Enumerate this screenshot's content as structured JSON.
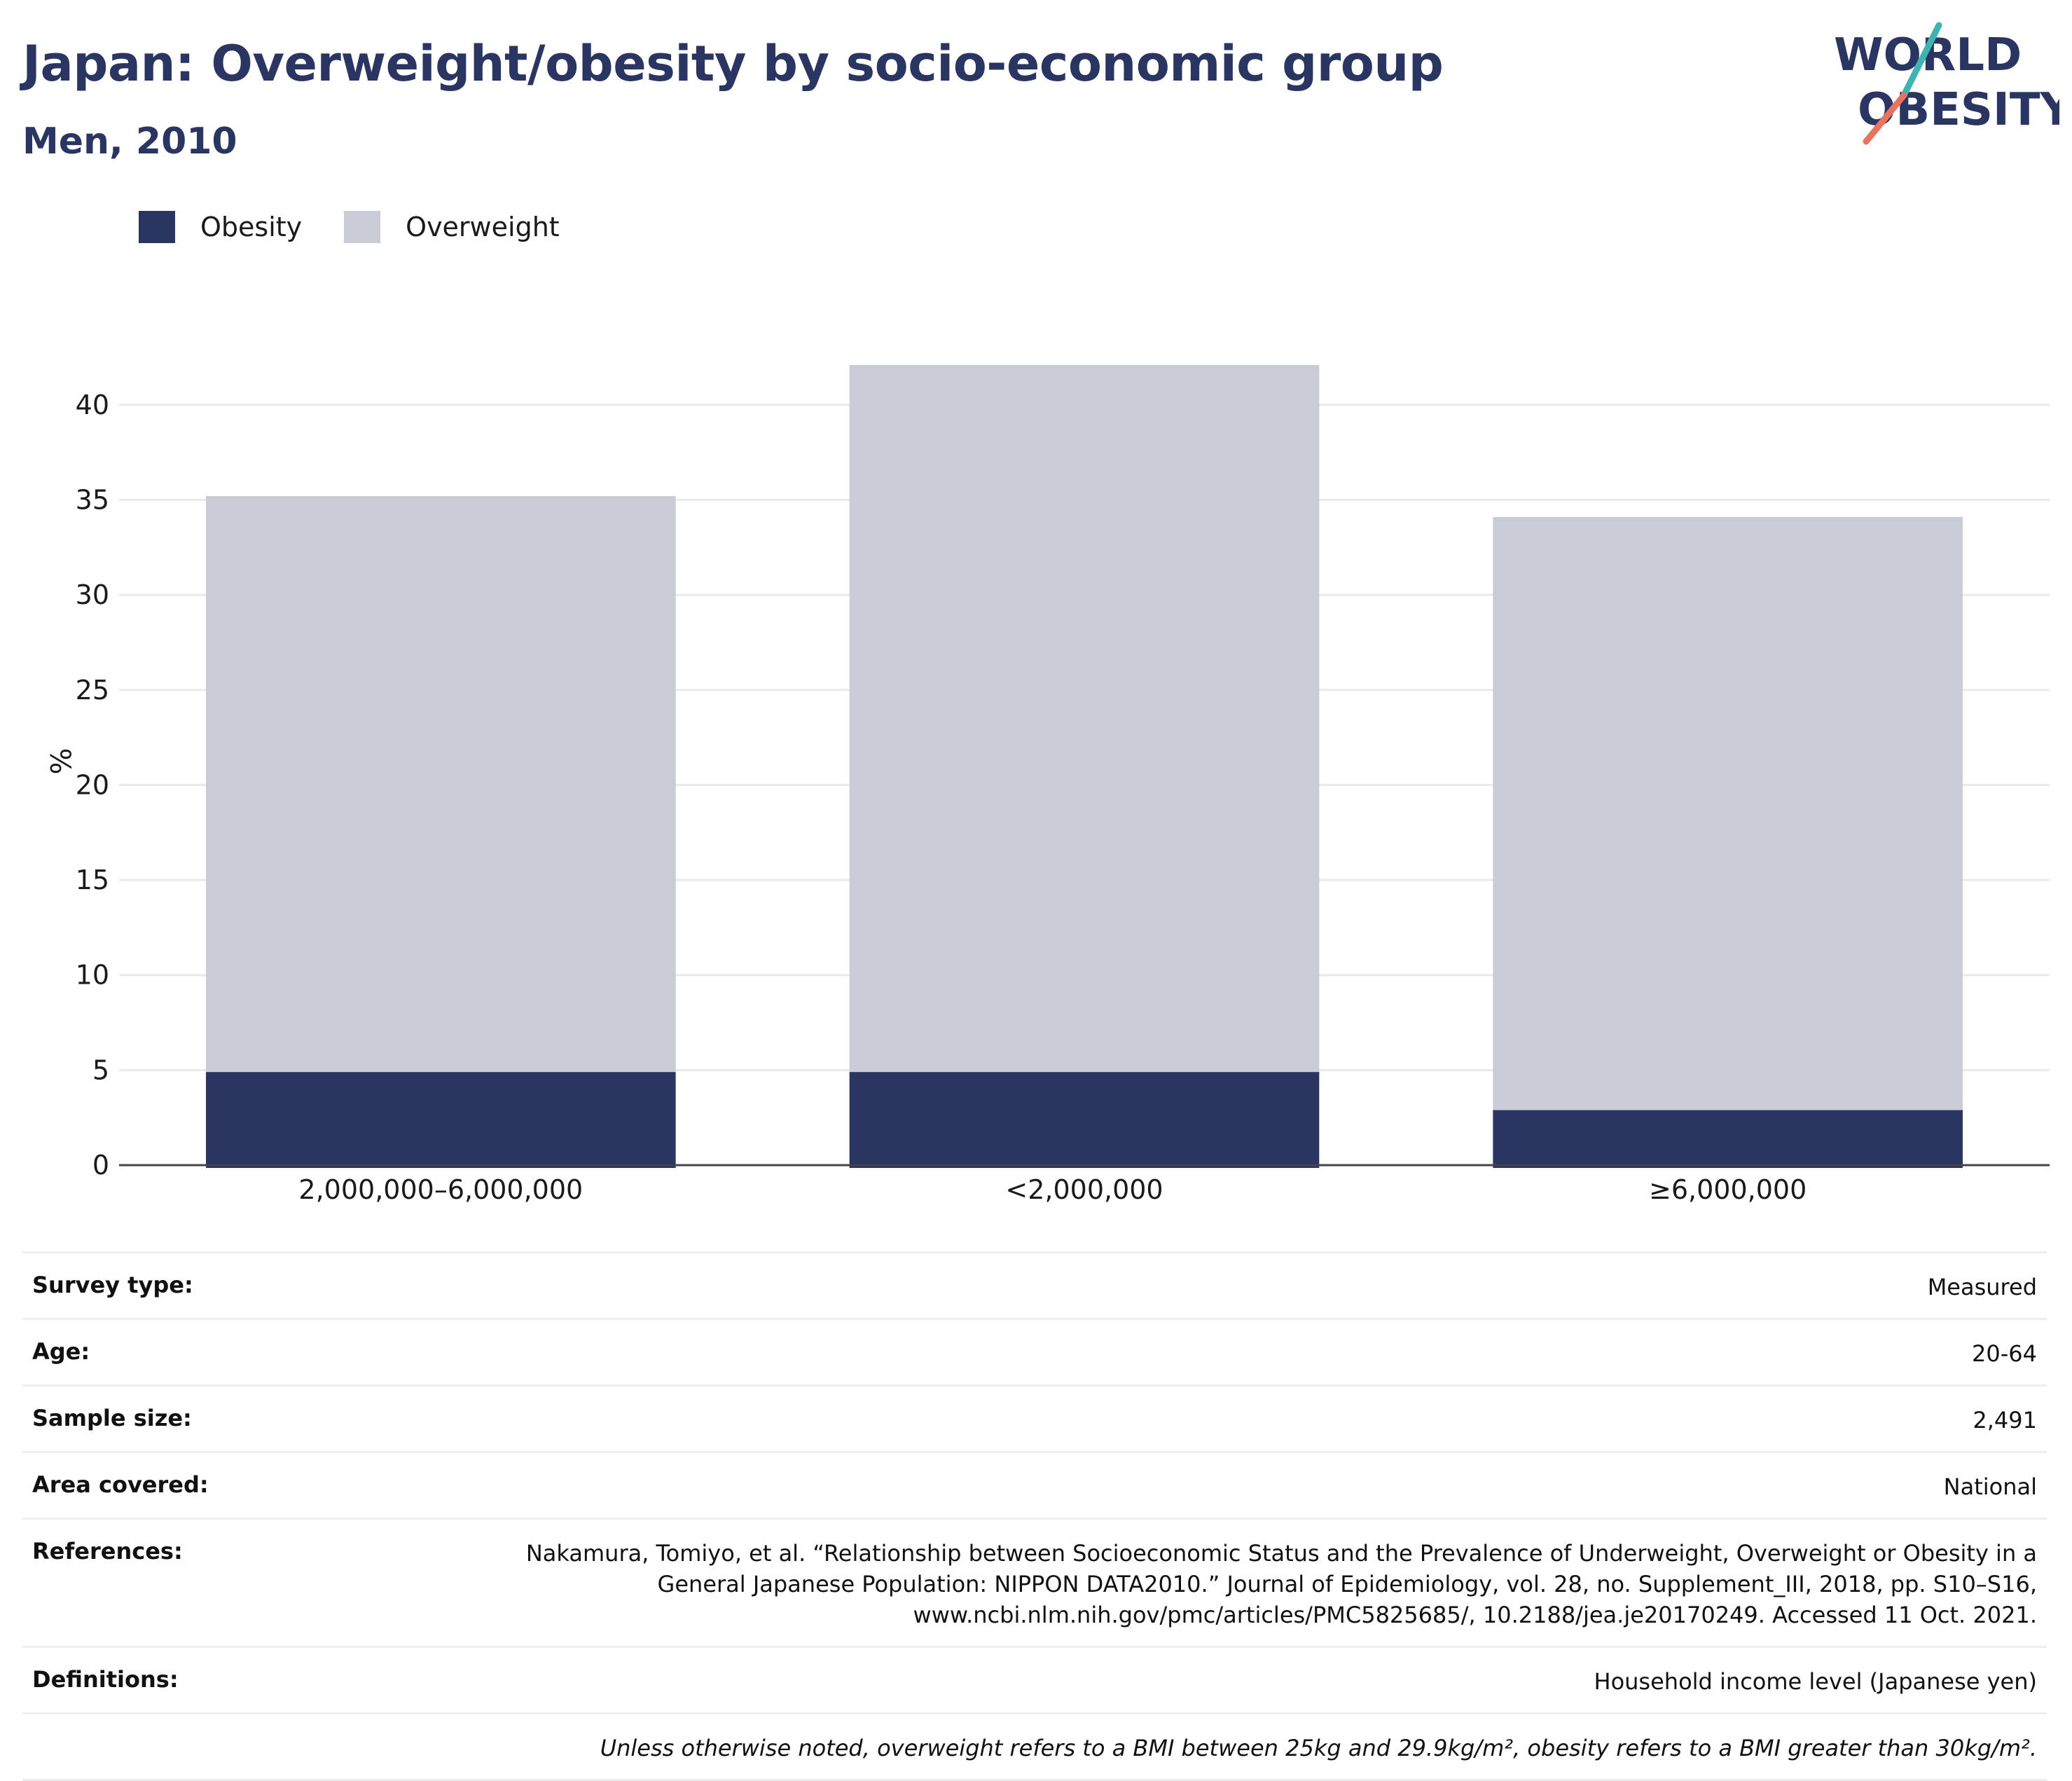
{
  "header": {
    "title": "Japan: Overweight/obesity by socio-economic group",
    "subtitle": "Men, 2010"
  },
  "logo": {
    "line1": "WORLD",
    "line2": "OBESITY"
  },
  "legend": [
    {
      "label": "Obesity",
      "color": "#2a3562"
    },
    {
      "label": "Overweight",
      "color": "#c9ccd7"
    }
  ],
  "chart_data": {
    "type": "bar",
    "stacked": true,
    "categories": [
      "2,000,000–6,000,000",
      "<2,000,000",
      "≥6,000,000"
    ],
    "series": [
      {
        "name": "Obesity",
        "values": [
          4.9,
          4.9,
          2.9
        ],
        "color": "#2a3562"
      },
      {
        "name": "Overweight",
        "values": [
          30.3,
          37.2,
          31.2
        ],
        "color": "#c9ccd7"
      }
    ],
    "ylabel": "%",
    "ylim": [
      0,
      42.5
    ],
    "yticks": [
      0,
      5,
      10,
      15,
      20,
      25,
      30,
      35,
      40
    ],
    "grid": true,
    "legend_position": "top-left"
  },
  "info": {
    "survey_type": {
      "label": "Survey type:",
      "value": "Measured"
    },
    "age": {
      "label": "Age:",
      "value": "20-64"
    },
    "sample_size": {
      "label": "Sample size:",
      "value": "2,491"
    },
    "area": {
      "label": "Area covered:",
      "value": "National"
    },
    "references": {
      "label": "References:",
      "lines": [
        "Nakamura, Tomiyo, et al. “Relationship between Socioeconomic Status and the Prevalence of Underweight, Overweight or Obesity in a",
        "General Japanese Population: NIPPON DATA2010.” Journal of Epidemiology, vol. 28, no. Supplement_III, 2018, pp. S10–S16,",
        "www.ncbi.nlm.nih.gov/pmc/articles/PMC5825685/, 10.2188/jea.je20170249. Accessed 11 Oct. 2021."
      ]
    },
    "definitions": {
      "label": "Definitions:",
      "value": "Household income level (Japanese yen)"
    },
    "note": "Unless otherwise noted, overweight refers to a BMI between 25kg and 29.9kg/m², obesity refers to a BMI greater than 30kg/m²."
  }
}
